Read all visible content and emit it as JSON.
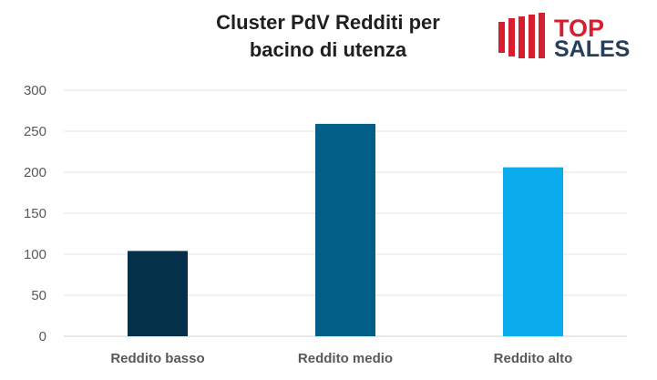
{
  "chart_data": {
    "type": "bar",
    "title": "Cluster PdV Redditi per bacino di utenza",
    "categories": [
      "Reddito basso",
      "Reddito medio",
      "Reddito alto"
    ],
    "values": [
      104,
      259,
      206
    ],
    "bar_colors": [
      "#043049",
      "#005e87",
      "#0aaced"
    ],
    "ylim": [
      0,
      300
    ],
    "yticks": [
      0,
      50,
      100,
      150,
      200,
      250,
      300
    ],
    "grid": true,
    "legend": "none"
  },
  "title_lines": [
    "Cluster PdV Redditi per",
    "bacino di utenza"
  ],
  "logo": {
    "text_top": "TOP",
    "text_bottom": "SALES",
    "red": "#d71e2e",
    "dark": "#27405a"
  }
}
